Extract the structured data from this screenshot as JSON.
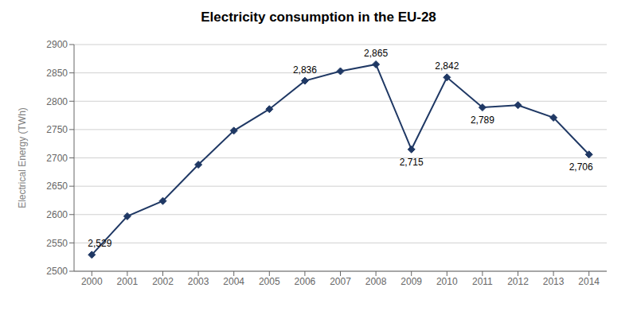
{
  "chart_data": {
    "type": "line",
    "title": "Electricity consumption in the EU-28",
    "ylabel": "Electrical Energy (TWh)",
    "x": [
      2000,
      2001,
      2002,
      2003,
      2004,
      2005,
      2006,
      2007,
      2008,
      2009,
      2010,
      2011,
      2012,
      2013,
      2014
    ],
    "values": [
      2529,
      2597,
      2624,
      2688,
      2748,
      2786,
      2836,
      2853,
      2865,
      2715,
      2842,
      2789,
      2793,
      2771,
      2706
    ],
    "color": "#1f3864",
    "marker": "diamond",
    "xlim": [
      1999.5,
      2014.5
    ],
    "xticks": [
      2000,
      2001,
      2002,
      2003,
      2004,
      2005,
      2006,
      2007,
      2008,
      2009,
      2010,
      2011,
      2012,
      2013,
      2014
    ],
    "ylim": [
      2500,
      2900
    ],
    "yticks": [
      2500,
      2550,
      2600,
      2650,
      2700,
      2750,
      2800,
      2850,
      2900
    ],
    "grid": "y",
    "annotations": [
      {
        "x": 2000,
        "y": 2529,
        "text": "2,529"
      },
      {
        "x": 2006,
        "y": 2836,
        "text": "2,836"
      },
      {
        "x": 2008,
        "y": 2865,
        "text": "2,865"
      },
      {
        "x": 2009,
        "y": 2715,
        "text": "2,715"
      },
      {
        "x": 2010,
        "y": 2842,
        "text": "2,842"
      },
      {
        "x": 2011,
        "y": 2789,
        "text": "2,789"
      },
      {
        "x": 2014,
        "y": 2706,
        "text": "2,706"
      }
    ]
  }
}
